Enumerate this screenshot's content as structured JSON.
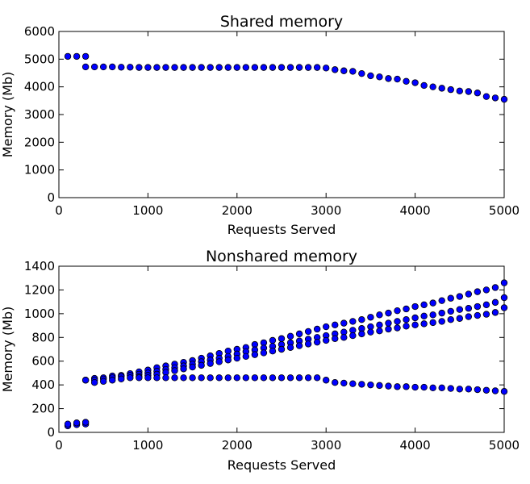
{
  "chart_data": [
    {
      "type": "scatter",
      "title": "Shared memory",
      "xlabel": "Requests Served",
      "ylabel": "Memory (Mb)",
      "xlim": [
        0,
        5000
      ],
      "ylim": [
        0,
        6000
      ],
      "xticks": [
        "0",
        "1000",
        "2000",
        "3000",
        "4000",
        "5000"
      ],
      "yticks": [
        "0",
        "1000",
        "2000",
        "3000",
        "4000",
        "5000",
        "6000"
      ],
      "grid": false,
      "series": [
        {
          "x": [
            100,
            200,
            300,
            300,
            400,
            500,
            600,
            700,
            800,
            900,
            1000,
            1100,
            1200,
            1300,
            1400,
            1500,
            1600,
            1700,
            1800,
            1900,
            2000,
            2100,
            2200,
            2300,
            2400,
            2500,
            2600,
            2700,
            2800,
            2900,
            3000,
            3100,
            3200,
            3300,
            3400,
            3500,
            3600,
            3700,
            3800,
            3900,
            4000,
            4100,
            4200,
            4300,
            4400,
            4500,
            4600,
            4700,
            4800,
            4900,
            5000
          ],
          "y": [
            5100,
            5100,
            5100,
            4720,
            4720,
            4720,
            4720,
            4710,
            4710,
            4700,
            4700,
            4700,
            4700,
            4700,
            4700,
            4700,
            4700,
            4700,
            4700,
            4700,
            4700,
            4700,
            4700,
            4700,
            4700,
            4700,
            4700,
            4700,
            4700,
            4700,
            4680,
            4620,
            4580,
            4560,
            4480,
            4400,
            4360,
            4300,
            4280,
            4200,
            4150,
            4050,
            4000,
            3950,
            3900,
            3850,
            3830,
            3780,
            3650,
            3600,
            3550
          ]
        }
      ]
    },
    {
      "type": "scatter",
      "title": "Nonshared memory",
      "xlabel": "Requests Served",
      "ylabel": "Memory (Mb)",
      "xlim": [
        0,
        5000
      ],
      "ylim": [
        0,
        1400
      ],
      "xticks": [
        "0",
        "1000",
        "2000",
        "3000",
        "4000",
        "5000"
      ],
      "yticks": [
        "0",
        "200",
        "400",
        "600",
        "800",
        "1000",
        "1200",
        "1400"
      ],
      "grid": false,
      "series": [
        {
          "x": [
            100,
            100,
            200,
            200,
            300,
            300
          ],
          "y": [
            55,
            70,
            65,
            80,
            70,
            85
          ]
        },
        {
          "x": [
            300,
            400,
            500,
            600,
            700,
            800,
            900,
            1000,
            1100,
            1200,
            1300,
            1400,
            1500,
            1600,
            1700,
            1800,
            1900,
            2000,
            2100,
            2200,
            2300,
            2400,
            2500,
            2600,
            2700,
            2800,
            2900,
            3000,
            3100,
            3200,
            3300,
            3400,
            3500,
            3600,
            3700,
            3800,
            3900,
            4000,
            4100,
            4200,
            4300,
            4400,
            4500,
            4600,
            4700,
            4800,
            4900,
            5000
          ],
          "y": [
            440,
            455,
            460,
            475,
            480,
            495,
            510,
            525,
            545,
            560,
            575,
            590,
            605,
            625,
            645,
            665,
            685,
            700,
            715,
            740,
            755,
            775,
            790,
            810,
            830,
            850,
            870,
            890,
            905,
            920,
            935,
            950,
            970,
            990,
            1005,
            1025,
            1040,
            1060,
            1075,
            1090,
            1110,
            1130,
            1145,
            1165,
            1185,
            1200,
            1220,
            1260
          ]
        },
        {
          "x": [
            300,
            400,
            500,
            600,
            700,
            800,
            900,
            1000,
            1100,
            1200,
            1300,
            1400,
            1500,
            1600,
            1700,
            1800,
            1900,
            2000,
            2100,
            2200,
            2300,
            2400,
            2500,
            2600,
            2700,
            2800,
            2900,
            3000,
            3100,
            3200,
            3300,
            3400,
            3500,
            3600,
            3700,
            3800,
            3900,
            4000,
            4100,
            4200,
            4300,
            4400,
            4500,
            4600,
            4700,
            4800,
            4900,
            5000
          ],
          "y": [
            440,
            440,
            450,
            460,
            470,
            480,
            490,
            500,
            515,
            530,
            545,
            560,
            575,
            595,
            610,
            625,
            640,
            660,
            680,
            695,
            710,
            725,
            740,
            755,
            770,
            785,
            800,
            815,
            830,
            845,
            860,
            875,
            890,
            905,
            920,
            935,
            950,
            965,
            980,
            990,
            1005,
            1020,
            1035,
            1045,
            1060,
            1075,
            1095,
            1135
          ]
        },
        {
          "x": [
            400,
            500,
            600,
            700,
            800,
            900,
            1000,
            1100,
            1200,
            1300,
            1400,
            1500,
            1600,
            1700,
            1800,
            1900,
            2000,
            2100,
            2200,
            2300,
            2400,
            2500,
            2600,
            2700,
            2800,
            2900,
            3000,
            3100,
            3200,
            3300,
            3400,
            3500,
            3600,
            3700,
            3800,
            3900,
            4000,
            4100,
            4200,
            4300,
            4400,
            4500,
            4600,
            4700,
            4800,
            4900,
            5000
          ],
          "y": [
            420,
            430,
            440,
            450,
            460,
            470,
            480,
            490,
            505,
            520,
            535,
            550,
            565,
            580,
            595,
            610,
            625,
            640,
            655,
            670,
            685,
            700,
            715,
            730,
            745,
            760,
            775,
            790,
            800,
            815,
            830,
            845,
            855,
            870,
            880,
            895,
            905,
            915,
            925,
            935,
            950,
            960,
            975,
            985,
            995,
            1010,
            1050
          ]
        },
        {
          "x": [
            900,
            1000,
            1100,
            1200,
            1300,
            1400,
            1500,
            1600,
            1700,
            1800,
            1900,
            2000,
            2100,
            2200,
            2300,
            2400,
            2500,
            2600,
            2700,
            2800,
            2900,
            3000,
            3100,
            3200,
            3300,
            3400,
            3500,
            3600,
            3700,
            3800,
            3900,
            4000,
            4100,
            4200,
            4300,
            4400,
            4500,
            4600,
            4700,
            4800,
            4900,
            5000
          ],
          "y": [
            460,
            460,
            460,
            460,
            460,
            460,
            460,
            460,
            460,
            460,
            460,
            460,
            460,
            460,
            460,
            460,
            460,
            460,
            460,
            460,
            460,
            440,
            420,
            415,
            410,
            405,
            400,
            395,
            390,
            385,
            385,
            380,
            380,
            375,
            375,
            370,
            365,
            365,
            360,
            355,
            350,
            345
          ]
        }
      ]
    }
  ]
}
